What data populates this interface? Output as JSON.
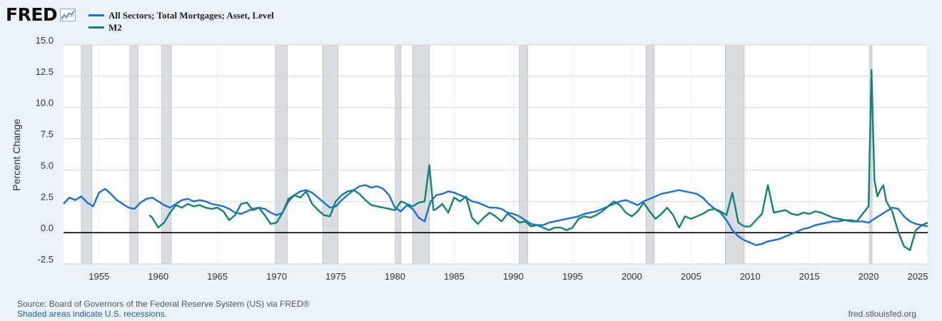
{
  "header": {
    "logo_text": "FRED",
    "logo_icon": "trend-line-icon"
  },
  "footer": {
    "source": "Source: Board of Governors of the Federal Reserve System (US) via FRED®",
    "recession_note": "Shaded areas indicate U.S. recessions.",
    "site": "fred.stlouisfed.org"
  },
  "chart_data": {
    "type": "line",
    "title": "",
    "xlabel": "",
    "ylabel": "Percent Change",
    "xlim": [
      1952.0,
      2025.0
    ],
    "ylim": [
      -2.5,
      15.0
    ],
    "x_ticks": [
      1955,
      1960,
      1965,
      1970,
      1975,
      1980,
      1985,
      1990,
      1995,
      2000,
      2005,
      2010,
      2015,
      2020,
      2025
    ],
    "y_ticks": [
      -2.5,
      0.0,
      2.5,
      5.0,
      7.5,
      10.0,
      12.5,
      15.0
    ],
    "y_tick_labels": [
      "-2.5",
      "0.0",
      "2.5",
      "5.0",
      "7.5",
      "10.0",
      "12.5",
      "15.0"
    ],
    "grid": true,
    "legend_position": "top-left",
    "recessions": [
      [
        1953.5,
        1954.4
      ],
      [
        1957.6,
        1958.3
      ],
      [
        1960.3,
        1961.1
      ],
      [
        1969.9,
        1970.9
      ],
      [
        1973.9,
        1975.2
      ],
      [
        1980.0,
        1980.5
      ],
      [
        1981.5,
        1982.9
      ],
      [
        1990.5,
        1991.2
      ],
      [
        2001.2,
        2001.9
      ],
      [
        2007.9,
        2009.5
      ],
      [
        2020.1,
        2020.3
      ]
    ],
    "series": [
      {
        "name": "All Sectors; Total Mortgages; Asset, Level",
        "color": "#1a6fdb",
        "x": [
          1952.0,
          1952.5,
          1953.0,
          1953.5,
          1954.0,
          1954.5,
          1955.0,
          1955.5,
          1956.0,
          1956.5,
          1957.0,
          1957.5,
          1958.0,
          1958.5,
          1959.0,
          1959.5,
          1960.0,
          1960.5,
          1961.0,
          1961.5,
          1962.0,
          1962.5,
          1963.0,
          1963.5,
          1964.0,
          1964.5,
          1965.0,
          1965.5,
          1966.0,
          1966.5,
          1967.0,
          1967.5,
          1968.0,
          1968.5,
          1969.0,
          1969.5,
          1970.0,
          1970.5,
          1971.0,
          1971.5,
          1972.0,
          1972.5,
          1973.0,
          1973.5,
          1974.0,
          1974.5,
          1975.0,
          1975.5,
          1976.0,
          1976.5,
          1977.0,
          1977.5,
          1978.0,
          1978.5,
          1979.0,
          1979.5,
          1980.0,
          1980.5,
          1981.0,
          1981.5,
          1982.0,
          1982.5,
          1983.0,
          1983.5,
          1984.0,
          1984.5,
          1985.0,
          1985.5,
          1986.0,
          1986.5,
          1987.0,
          1987.5,
          1988.0,
          1988.5,
          1989.0,
          1989.5,
          1990.0,
          1990.5,
          1991.0,
          1991.5,
          1992.0,
          1992.5,
          1993.0,
          1993.5,
          1994.0,
          1994.5,
          1995.0,
          1995.5,
          1996.0,
          1996.5,
          1997.0,
          1997.5,
          1998.0,
          1998.5,
          1999.0,
          1999.5,
          2000.0,
          2000.5,
          2001.0,
          2001.5,
          2002.0,
          2002.5,
          2003.0,
          2003.5,
          2004.0,
          2004.5,
          2005.0,
          2005.5,
          2006.0,
          2006.5,
          2007.0,
          2007.5,
          2008.0,
          2008.5,
          2009.0,
          2009.5,
          2010.0,
          2010.5,
          2011.0,
          2011.5,
          2012.0,
          2012.5,
          2013.0,
          2013.5,
          2014.0,
          2014.5,
          2015.0,
          2015.5,
          2016.0,
          2016.5,
          2017.0,
          2017.5,
          2018.0,
          2018.5,
          2019.0,
          2019.5,
          2020.0,
          2020.5,
          2021.0,
          2021.5,
          2022.0,
          2022.5,
          2023.0,
          2023.5,
          2024.0,
          2024.5,
          2025.0
        ],
        "values": [
          2.3,
          2.8,
          2.6,
          2.9,
          2.4,
          2.1,
          3.2,
          3.5,
          3.1,
          2.6,
          2.3,
          2.0,
          1.9,
          2.4,
          2.7,
          2.8,
          2.5,
          2.2,
          2.0,
          2.3,
          2.6,
          2.7,
          2.5,
          2.6,
          2.5,
          2.3,
          2.2,
          2.1,
          1.9,
          1.6,
          1.5,
          1.7,
          1.9,
          2.0,
          1.9,
          1.6,
          1.4,
          1.6,
          2.5,
          3.0,
          3.3,
          3.4,
          3.2,
          2.8,
          2.4,
          2.0,
          2.1,
          2.6,
          3.0,
          3.4,
          3.7,
          3.8,
          3.6,
          3.7,
          3.5,
          3.0,
          2.0,
          1.7,
          2.2,
          1.9,
          1.2,
          0.9,
          2.5,
          3.0,
          3.1,
          3.3,
          3.2,
          3.0,
          2.8,
          2.5,
          2.4,
          2.2,
          2.0,
          2.0,
          1.9,
          1.6,
          1.5,
          1.3,
          1.0,
          0.7,
          0.6,
          0.6,
          0.8,
          0.9,
          1.0,
          1.1,
          1.2,
          1.3,
          1.5,
          1.6,
          1.7,
          1.9,
          2.1,
          2.3,
          2.5,
          2.6,
          2.4,
          2.2,
          2.5,
          2.7,
          2.9,
          3.1,
          3.2,
          3.3,
          3.4,
          3.3,
          3.2,
          3.1,
          2.8,
          2.3,
          1.9,
          1.6,
          1.0,
          0.2,
          -0.3,
          -0.6,
          -0.8,
          -1.0,
          -0.9,
          -0.7,
          -0.6,
          -0.5,
          -0.3,
          -0.1,
          0.1,
          0.3,
          0.4,
          0.6,
          0.7,
          0.8,
          0.9,
          0.9,
          1.0,
          1.0,
          0.9,
          0.9,
          0.8,
          1.1,
          1.4,
          1.7,
          2.0,
          1.9,
          1.3,
          0.9,
          0.7,
          0.6,
          0.5
        ]
      },
      {
        "name": "M2",
        "color": "#128274",
        "x": [
          1959.25,
          1959.5,
          1960.0,
          1960.5,
          1961.0,
          1961.5,
          1962.0,
          1962.5,
          1963.0,
          1963.5,
          1964.0,
          1964.5,
          1965.0,
          1965.5,
          1966.0,
          1966.5,
          1967.0,
          1967.5,
          1968.0,
          1968.5,
          1969.0,
          1969.5,
          1970.0,
          1970.5,
          1971.0,
          1971.5,
          1972.0,
          1972.5,
          1973.0,
          1973.5,
          1974.0,
          1974.5,
          1975.0,
          1975.5,
          1976.0,
          1976.5,
          1977.0,
          1977.5,
          1978.0,
          1978.5,
          1979.0,
          1979.5,
          1980.0,
          1980.5,
          1981.0,
          1981.5,
          1982.0,
          1982.5,
          1982.9,
          1983.25,
          1983.5,
          1984.0,
          1984.5,
          1985.0,
          1985.5,
          1986.0,
          1986.5,
          1987.0,
          1987.5,
          1988.0,
          1988.5,
          1989.0,
          1989.5,
          1990.0,
          1990.5,
          1991.0,
          1991.5,
          1992.0,
          1992.5,
          1993.0,
          1993.5,
          1994.0,
          1994.5,
          1995.0,
          1995.5,
          1996.0,
          1996.5,
          1997.0,
          1997.5,
          1998.0,
          1998.5,
          1999.0,
          1999.5,
          2000.0,
          2000.5,
          2001.0,
          2001.5,
          2002.0,
          2002.5,
          2003.0,
          2003.5,
          2004.0,
          2004.5,
          2005.0,
          2005.5,
          2006.0,
          2006.5,
          2007.0,
          2007.5,
          2008.0,
          2008.5,
          2009.0,
          2009.5,
          2010.0,
          2010.5,
          2011.0,
          2011.5,
          2012.0,
          2012.5,
          2013.0,
          2013.5,
          2014.0,
          2014.5,
          2015.0,
          2015.5,
          2016.0,
          2016.5,
          2017.0,
          2017.5,
          2018.0,
          2018.5,
          2019.0,
          2019.5,
          2020.0,
          2020.25,
          2020.5,
          2020.75,
          2021.0,
          2021.25,
          2021.5,
          2022.0,
          2022.5,
          2023.0,
          2023.5,
          2024.0,
          2024.5,
          2025.0
        ],
        "values": [
          1.4,
          1.2,
          0.4,
          0.8,
          1.6,
          2.2,
          2.0,
          2.3,
          2.1,
          2.2,
          2.0,
          1.9,
          2.0,
          1.7,
          1.0,
          1.4,
          2.3,
          2.4,
          1.8,
          2.0,
          1.4,
          0.7,
          0.8,
          1.6,
          2.7,
          3.0,
          2.8,
          3.3,
          2.3,
          1.8,
          1.4,
          1.3,
          2.5,
          3.0,
          3.3,
          3.4,
          3.1,
          2.6,
          2.2,
          2.1,
          2.0,
          1.9,
          1.8,
          2.5,
          2.3,
          2.1,
          2.4,
          2.5,
          5.4,
          1.8,
          1.9,
          2.3,
          1.6,
          2.8,
          2.5,
          2.9,
          1.2,
          0.7,
          1.2,
          1.6,
          1.3,
          0.9,
          1.5,
          1.2,
          0.8,
          0.9,
          0.5,
          0.6,
          0.4,
          0.2,
          0.4,
          0.4,
          0.2,
          0.4,
          1.1,
          1.3,
          1.2,
          1.4,
          1.7,
          2.1,
          2.5,
          2.2,
          1.6,
          1.3,
          1.7,
          2.4,
          1.7,
          1.1,
          1.5,
          2.0,
          1.4,
          0.4,
          1.3,
          1.1,
          1.3,
          1.5,
          1.8,
          1.9,
          1.7,
          1.4,
          3.2,
          0.8,
          0.5,
          0.5,
          1.0,
          1.5,
          3.8,
          1.6,
          1.7,
          1.8,
          1.5,
          1.4,
          1.6,
          1.5,
          1.7,
          1.6,
          1.4,
          1.2,
          1.1,
          1.0,
          0.9,
          0.9,
          1.5,
          2.1,
          13.0,
          4.2,
          2.9,
          3.4,
          3.8,
          2.5,
          1.7,
          0.1,
          -1.1,
          -1.4,
          0.2,
          0.6,
          0.8
        ]
      }
    ]
  }
}
